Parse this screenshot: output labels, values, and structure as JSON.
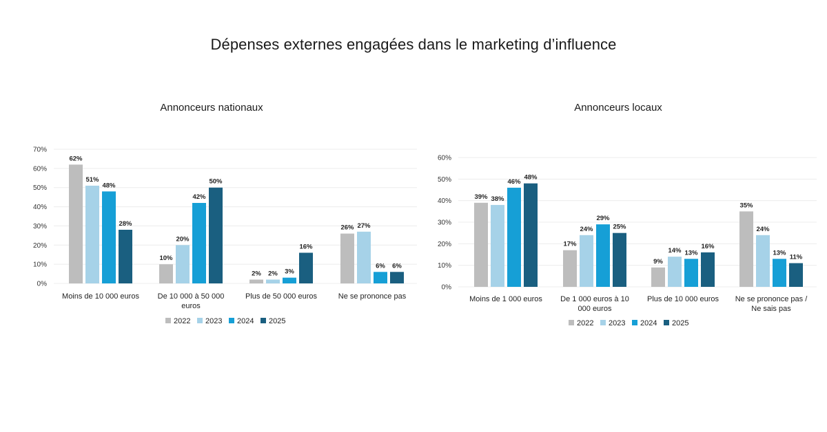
{
  "title": "Dépenses externes engagées dans le marketing d’influence",
  "colors": {
    "2022": "#bdbdbd",
    "2023": "#a6d2e8",
    "2024": "#169fd6",
    "2025": "#1a5f80"
  },
  "chart_data": [
    {
      "type": "bar",
      "title": "Annonceurs nationaux",
      "categories": [
        [
          "Moins de 10 000 euros"
        ],
        [
          "De 10 000 à 50 000",
          "euros"
        ],
        [
          "Plus de 50 000 euros"
        ],
        [
          "Ne se prononce pas"
        ]
      ],
      "series": [
        {
          "name": "2022",
          "values": [
            62,
            10,
            2,
            26
          ]
        },
        {
          "name": "2023",
          "values": [
            51,
            20,
            2,
            27
          ]
        },
        {
          "name": "2024",
          "values": [
            48,
            42,
            3,
            6
          ]
        },
        {
          "name": "2025",
          "values": [
            28,
            50,
            16,
            6
          ]
        }
      ],
      "ylim": [
        0,
        70
      ],
      "yticks": [
        0,
        10,
        20,
        30,
        40,
        50,
        60,
        70
      ],
      "tick_labels": [
        "0%",
        "10%",
        "20%",
        "30%",
        "40%",
        "50%",
        "60%",
        "70%"
      ],
      "value_labels": [
        [
          "62%",
          "10%",
          "2%",
          "26%"
        ],
        [
          "51%",
          "20%",
          "2%",
          "27%"
        ],
        [
          "48%",
          "42%",
          "3%",
          "6%"
        ],
        [
          "28%",
          "50%",
          "16%",
          "6%"
        ]
      ],
      "grid": true,
      "legend": "bottom"
    },
    {
      "type": "bar",
      "title": "Annonceurs locaux",
      "categories": [
        [
          "Moins de 1 000 euros"
        ],
        [
          "De 1 000 euros à 10",
          "000 euros"
        ],
        [
          "Plus de 10 000 euros"
        ],
        [
          "Ne se prononce pas /",
          "Ne sais pas"
        ]
      ],
      "series": [
        {
          "name": "2022",
          "values": [
            39,
            17,
            9,
            35
          ]
        },
        {
          "name": "2023",
          "values": [
            38,
            24,
            14,
            24
          ]
        },
        {
          "name": "2024",
          "values": [
            46,
            29,
            13,
            13
          ]
        },
        {
          "name": "2025",
          "values": [
            48,
            25,
            16,
            11
          ]
        }
      ],
      "ylim": [
        0,
        60
      ],
      "yticks": [
        0,
        10,
        20,
        30,
        40,
        50,
        60
      ],
      "tick_labels": [
        "0%",
        "10%",
        "20%",
        "30%",
        "40%",
        "50%",
        "60%"
      ],
      "value_labels": [
        [
          "39%",
          "17%",
          "9%",
          "35%"
        ],
        [
          "38%",
          "24%",
          "14%",
          "24%"
        ],
        [
          "46%",
          "29%",
          "13%",
          "13%"
        ],
        [
          "48%",
          "25%",
          "16%",
          "11%"
        ]
      ],
      "grid": true,
      "legend": "bottom"
    }
  ]
}
